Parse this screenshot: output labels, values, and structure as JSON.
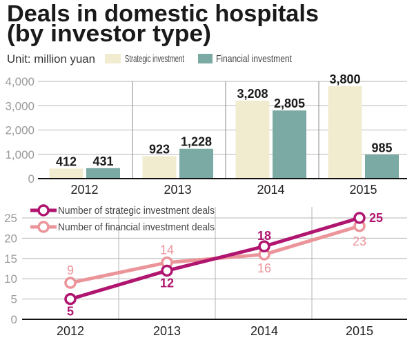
{
  "title_line1": "Deals in domestic hospitals",
  "title_line2": "(by investor type)",
  "unit": "Unit: million yuan",
  "chart_data": [
    {
      "type": "bar",
      "categories": [
        "2012",
        "2013",
        "2014",
        "2015"
      ],
      "ylim": [
        0,
        4000
      ],
      "yticks": [
        "0",
        "1,000",
        "2,000",
        "3,000",
        "4,000"
      ],
      "ytick_values": [
        0,
        1000,
        2000,
        3000,
        4000
      ],
      "grid": true,
      "legend_placement": "top",
      "series": [
        {
          "name": "Strategic investment",
          "values": [
            412,
            923,
            3208,
            3800
          ],
          "labels": [
            "412",
            "923",
            "3,208",
            "3,800"
          ],
          "color": "#f1ecd0"
        },
        {
          "name": "Financial investment",
          "values": [
            431,
            1228,
            2805,
            985
          ],
          "labels": [
            "431",
            "1,228",
            "2,805",
            "985"
          ],
          "color": "#7ba9a4"
        }
      ]
    },
    {
      "type": "line",
      "categories": [
        "2012",
        "2013",
        "2014",
        "2015"
      ],
      "ylim": [
        0,
        25
      ],
      "yticks": [
        "0",
        "5",
        "10",
        "15",
        "20",
        "25"
      ],
      "ytick_values": [
        0,
        5,
        10,
        15,
        20,
        25
      ],
      "grid": true,
      "legend_placement": "top-left",
      "series": [
        {
          "name": "Number of strategic investment deals",
          "values": [
            5,
            12,
            18,
            25
          ],
          "color": "#b0156f"
        },
        {
          "name": "Number of financial investment deals",
          "values": [
            9,
            14,
            16,
            23
          ],
          "color": "#eb949a"
        }
      ]
    }
  ]
}
